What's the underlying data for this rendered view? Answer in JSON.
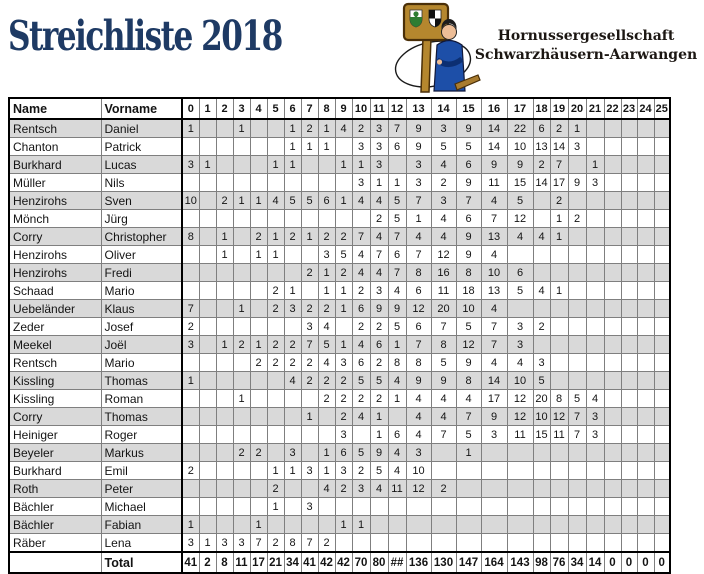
{
  "title": "Streichliste 2018",
  "club": {
    "line1": "Hornussergesellschaft",
    "line2": "Schwarzhäusern-Aarwangen"
  },
  "icons": {
    "logo": "hornusser-player-signpost-logo"
  },
  "colors": {
    "title_navy": "#1e3a64",
    "row_stripe_gray": "#d9d9d9",
    "grid_line": "#7f7f7f",
    "border_black": "#000000",
    "shirt_blue": "#1d4fa8",
    "wood_tan": "#b5872e"
  },
  "table": {
    "headers": {
      "name": "Name",
      "vorname": "Vorname",
      "scores": [
        "0",
        "1",
        "2",
        "3",
        "4",
        "5",
        "6",
        "7",
        "8",
        "9",
        "10",
        "11",
        "12",
        "13",
        "14",
        "15",
        "16",
        "17",
        "18",
        "19",
        "20",
        "21",
        "22",
        "23",
        "24",
        "25"
      ]
    },
    "rows": [
      {
        "name": "Rentsch",
        "vorname": "Daniel",
        "scores": [
          "1",
          "",
          "",
          "1",
          "",
          "",
          "1",
          "2",
          "1",
          "4",
          "2",
          "3",
          "7",
          "9",
          "3",
          "9",
          "14",
          "22",
          "6",
          "2",
          "1",
          "",
          "",
          "",
          "",
          ""
        ]
      },
      {
        "name": "Chanton",
        "vorname": "Patrick",
        "scores": [
          "",
          "",
          "",
          "",
          "",
          "",
          "1",
          "1",
          "1",
          "",
          "3",
          "3",
          "6",
          "9",
          "5",
          "5",
          "14",
          "10",
          "13",
          "14",
          "3",
          "",
          "",
          "",
          "",
          ""
        ]
      },
      {
        "name": "Burkhard",
        "vorname": "Lucas",
        "scores": [
          "3",
          "1",
          "",
          "",
          "",
          "1",
          "1",
          "",
          "",
          "1",
          "1",
          "3",
          "",
          "3",
          "4",
          "6",
          "9",
          "9",
          "2",
          "7",
          "",
          "1",
          "",
          "",
          "",
          ""
        ]
      },
      {
        "name": "Müller",
        "vorname": "Nils",
        "scores": [
          "",
          "",
          "",
          "",
          "",
          "",
          "",
          "",
          "",
          "",
          "3",
          "1",
          "1",
          "3",
          "2",
          "9",
          "11",
          "15",
          "14",
          "17",
          "9",
          "3",
          "",
          "",
          "",
          ""
        ]
      },
      {
        "name": "Henzirohs",
        "vorname": "Sven",
        "scores": [
          "10",
          "",
          "2",
          "1",
          "1",
          "4",
          "5",
          "5",
          "6",
          "1",
          "4",
          "4",
          "5",
          "7",
          "3",
          "7",
          "4",
          "5",
          "",
          "2",
          "",
          "",
          "",
          "",
          "",
          ""
        ]
      },
      {
        "name": "Mönch",
        "vorname": "Jürg",
        "scores": [
          "",
          "",
          "",
          "",
          "",
          "",
          "",
          "",
          "",
          "",
          "",
          "2",
          "5",
          "1",
          "4",
          "6",
          "7",
          "12",
          "",
          "1",
          "2",
          "",
          "",
          "",
          "",
          ""
        ]
      },
      {
        "name": "Corry",
        "vorname": "Christopher",
        "scores": [
          "8",
          "",
          "1",
          "",
          "2",
          "1",
          "2",
          "1",
          "2",
          "2",
          "7",
          "4",
          "7",
          "4",
          "4",
          "9",
          "13",
          "4",
          "4",
          "1",
          "",
          "",
          "",
          "",
          "",
          ""
        ]
      },
      {
        "name": "Henzirohs",
        "vorname": "Oliver",
        "scores": [
          "",
          "",
          "1",
          "",
          "1",
          "1",
          "",
          "",
          "3",
          "5",
          "4",
          "7",
          "6",
          "7",
          "12",
          "9",
          "4",
          "",
          "",
          "",
          "",
          "",
          "",
          "",
          "",
          ""
        ]
      },
      {
        "name": "Henzirohs",
        "vorname": "Fredi",
        "scores": [
          "",
          "",
          "",
          "",
          "",
          "",
          "",
          "2",
          "1",
          "2",
          "4",
          "4",
          "7",
          "8",
          "16",
          "8",
          "10",
          "6",
          "",
          "",
          "",
          "",
          "",
          "",
          "",
          ""
        ]
      },
      {
        "name": "Schaad",
        "vorname": "Mario",
        "scores": [
          "",
          "",
          "",
          "",
          "",
          "2",
          "1",
          "",
          "1",
          "1",
          "2",
          "3",
          "4",
          "6",
          "11",
          "18",
          "13",
          "5",
          "4",
          "1",
          "",
          "",
          "",
          "",
          "",
          ""
        ]
      },
      {
        "name": "Uebeländer",
        "vorname": "Klaus",
        "scores": [
          "7",
          "",
          "",
          "1",
          "",
          "2",
          "3",
          "2",
          "2",
          "1",
          "6",
          "9",
          "9",
          "12",
          "20",
          "10",
          "4",
          "",
          "",
          "",
          "",
          "",
          "",
          "",
          "",
          ""
        ]
      },
      {
        "name": "Zeder",
        "vorname": "Josef",
        "scores": [
          "2",
          "",
          "",
          "",
          "",
          "",
          "",
          "3",
          "4",
          "",
          "2",
          "2",
          "5",
          "6",
          "7",
          "5",
          "7",
          "3",
          "2",
          "",
          "",
          "",
          "",
          "",
          "",
          ""
        ]
      },
      {
        "name": "Meekel",
        "vorname": "Joël",
        "scores": [
          "3",
          "",
          "1",
          "2",
          "1",
          "2",
          "2",
          "7",
          "5",
          "1",
          "4",
          "6",
          "1",
          "7",
          "8",
          "12",
          "7",
          "3",
          "",
          "",
          "",
          "",
          "",
          "",
          "",
          ""
        ]
      },
      {
        "name": "Rentsch",
        "vorname": "Mario",
        "scores": [
          "",
          "",
          "",
          "",
          "2",
          "2",
          "2",
          "2",
          "4",
          "3",
          "6",
          "2",
          "8",
          "8",
          "5",
          "9",
          "4",
          "4",
          "3",
          "",
          "",
          "",
          "",
          "",
          "",
          ""
        ]
      },
      {
        "name": "Kissling",
        "vorname": "Thomas",
        "scores": [
          "1",
          "",
          "",
          "",
          "",
          "",
          "4",
          "2",
          "2",
          "2",
          "5",
          "5",
          "4",
          "9",
          "9",
          "8",
          "14",
          "10",
          "5",
          "",
          "",
          "",
          "",
          "",
          "",
          ""
        ]
      },
      {
        "name": "Kissling",
        "vorname": "Roman",
        "scores": [
          "",
          "",
          "",
          "1",
          "",
          "",
          "",
          "",
          "2",
          "2",
          "2",
          "2",
          "1",
          "4",
          "4",
          "4",
          "17",
          "12",
          "20",
          "8",
          "5",
          "4",
          "",
          "",
          "",
          ""
        ]
      },
      {
        "name": "Corry",
        "vorname": "Thomas",
        "scores": [
          "",
          "",
          "",
          "",
          "",
          "",
          "",
          "1",
          "",
          "2",
          "4",
          "1",
          "",
          "4",
          "4",
          "7",
          "9",
          "12",
          "10",
          "12",
          "7",
          "3",
          "",
          "",
          "",
          ""
        ]
      },
      {
        "name": "Heiniger",
        "vorname": "Roger",
        "scores": [
          "",
          "",
          "",
          "",
          "",
          "",
          "",
          "",
          "",
          "3",
          "",
          "1",
          "6",
          "4",
          "7",
          "5",
          "3",
          "11",
          "15",
          "11",
          "7",
          "3",
          "",
          "",
          "",
          ""
        ]
      },
      {
        "name": "Beyeler",
        "vorname": "Markus",
        "scores": [
          "",
          "",
          "",
          "2",
          "2",
          "",
          "3",
          "",
          "1",
          "6",
          "5",
          "9",
          "4",
          "3",
          "",
          "1",
          "",
          "",
          "",
          "",
          "",
          "",
          "",
          "",
          "",
          ""
        ]
      },
      {
        "name": "Burkhard",
        "vorname": "Emil",
        "scores": [
          "2",
          "",
          "",
          "",
          "",
          "1",
          "1",
          "3",
          "1",
          "3",
          "2",
          "5",
          "4",
          "10",
          "",
          "",
          "",
          "",
          "",
          "",
          "",
          "",
          "",
          "",
          "",
          ""
        ]
      },
      {
        "name": "Roth",
        "vorname": "Peter",
        "scores": [
          "",
          "",
          "",
          "",
          "",
          "2",
          "",
          "",
          "4",
          "2",
          "3",
          "4",
          "11",
          "12",
          "2",
          "",
          "",
          "",
          "",
          "",
          "",
          "",
          "",
          "",
          "",
          ""
        ]
      },
      {
        "name": "Bächler",
        "vorname": "Michael",
        "scores": [
          "",
          "",
          "",
          "",
          "",
          "1",
          "",
          "3",
          "",
          "",
          "",
          "",
          "",
          "",
          "",
          "",
          "",
          "",
          "",
          "",
          "",
          "",
          "",
          "",
          "",
          ""
        ]
      },
      {
        "name": "Bächler",
        "vorname": "Fabian",
        "scores": [
          "1",
          "",
          "",
          "",
          "1",
          "",
          "",
          "",
          "",
          "1",
          "1",
          "",
          "",
          "",
          "",
          "",
          "",
          "",
          "",
          "",
          "",
          "",
          "",
          "",
          "",
          ""
        ]
      },
      {
        "name": "Räber",
        "vorname": "Lena",
        "scores": [
          "3",
          "1",
          "3",
          "3",
          "7",
          "2",
          "8",
          "7",
          "2",
          "",
          "",
          "",
          "",
          "",
          "",
          "",
          "",
          "",
          "",
          "",
          "",
          "",
          "",
          "",
          "",
          ""
        ]
      }
    ],
    "total": {
      "label": "Total",
      "values": [
        "41",
        "2",
        "8",
        "11",
        "17",
        "21",
        "34",
        "41",
        "42",
        "42",
        "70",
        "80",
        "##",
        "136",
        "130",
        "147",
        "164",
        "143",
        "98",
        "76",
        "34",
        "14",
        "0",
        "0",
        "0",
        "0"
      ]
    }
  }
}
